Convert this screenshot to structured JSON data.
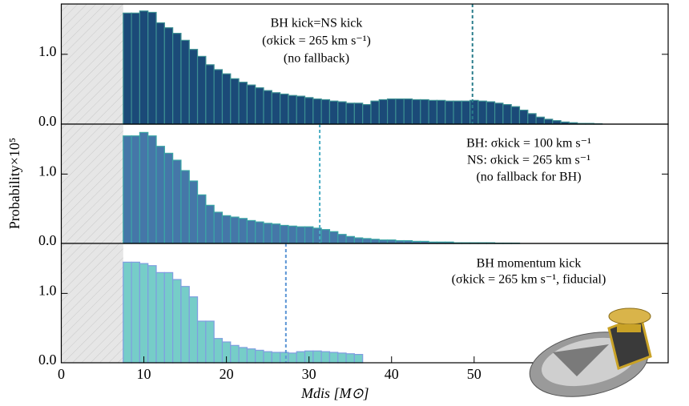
{
  "chart_data": [
    {
      "type": "histogram",
      "color": "#1b4a78",
      "edgecolor": "#3c8f92",
      "xlim": [
        0,
        73.5
      ],
      "ylim": [
        0,
        1.72
      ],
      "yticks": [
        {
          "value": 0,
          "label": "0.0"
        },
        {
          "value": 1,
          "label": "1.0"
        }
      ],
      "shaded_region": [
        0,
        7.5
      ],
      "vline": 49.8,
      "vline_color": "#2a7d8c",
      "annotation": [
        "BH kick=NS kick",
        "(σkick = 265 km s⁻¹)",
        "(no fallback)"
      ],
      "bins": [
        7.5,
        8.5,
        9.5,
        10.5,
        11.5,
        12.5,
        13.5,
        14.5,
        15.5,
        16.5,
        17.5,
        18.5,
        19.5,
        20.5,
        21.5,
        22.5,
        23.5,
        24.5,
        25.5,
        26.5,
        27.5,
        28.5,
        29.5,
        30.5,
        31.5,
        32.5,
        33.5,
        34.5,
        35.5,
        36.5,
        37.5,
        38.5,
        39.5,
        40.5,
        41.5,
        42.5,
        43.5,
        44.5,
        45.5,
        46.5,
        47.5,
        48.5,
        49.5,
        50.5,
        51.5,
        52.5,
        53.5,
        54.5,
        55.5,
        56.5,
        57.5,
        58.5,
        59.5,
        60.5,
        61.5,
        62.5,
        63.5,
        64.5,
        65.5,
        66.5
      ],
      "values": [
        1.59,
        1.59,
        1.62,
        1.6,
        1.45,
        1.38,
        1.3,
        1.2,
        1.07,
        0.97,
        0.85,
        0.78,
        0.72,
        0.65,
        0.6,
        0.56,
        0.52,
        0.48,
        0.45,
        0.43,
        0.41,
        0.4,
        0.38,
        0.36,
        0.35,
        0.33,
        0.32,
        0.3,
        0.3,
        0.28,
        0.33,
        0.35,
        0.36,
        0.36,
        0.36,
        0.35,
        0.35,
        0.34,
        0.34,
        0.33,
        0.33,
        0.33,
        0.34,
        0.33,
        0.32,
        0.3,
        0.28,
        0.25,
        0.2,
        0.15,
        0.1,
        0.07,
        0.05,
        0.03,
        0.02,
        0.01,
        0.01,
        0.005,
        0
      ]
    },
    {
      "type": "histogram",
      "color": "#4577a8",
      "edgecolor": "#3aa5a5",
      "xlim": [
        0,
        73.5
      ],
      "ylim": [
        0,
        1.72
      ],
      "yticks": [
        {
          "value": 0,
          "label": "0.0"
        },
        {
          "value": 1,
          "label": "1.0"
        }
      ],
      "ylabel": "Probability×10⁵",
      "shaded_region": [
        0,
        7.5
      ],
      "vline": 31.3,
      "vline_color": "#4aaec4",
      "annotation": [
        "BH: σkick = 100 km s⁻¹",
        "NS: σkick = 265 km s⁻¹",
        "(no fallback for BH)"
      ],
      "bins": [
        7.5,
        8.5,
        9.5,
        10.5,
        11.5,
        12.5,
        13.5,
        14.5,
        15.5,
        16.5,
        17.5,
        18.5,
        19.5,
        20.5,
        21.5,
        22.5,
        23.5,
        24.5,
        25.5,
        26.5,
        27.5,
        28.5,
        29.5,
        30.5,
        31.5,
        32.5,
        33.5,
        34.5,
        35.5,
        36.5,
        37.5,
        38.5,
        39.5,
        40.5,
        41.5,
        42.5,
        43.5,
        44.5,
        45.5,
        46.5,
        47.5,
        48.5,
        49.5,
        50.5,
        51.5,
        52.5,
        53.5,
        54.5,
        55.5,
        56.5,
        57.5,
        58.5,
        59.5,
        60.5,
        61.5,
        62.5,
        63.5,
        64.5,
        65.5,
        66.5
      ],
      "values": [
        1.55,
        1.55,
        1.6,
        1.55,
        1.4,
        1.3,
        1.2,
        1.05,
        0.9,
        0.7,
        0.55,
        0.45,
        0.4,
        0.38,
        0.36,
        0.33,
        0.31,
        0.29,
        0.28,
        0.26,
        0.25,
        0.24,
        0.24,
        0.22,
        0.2,
        0.17,
        0.13,
        0.1,
        0.08,
        0.07,
        0.06,
        0.05,
        0.05,
        0.04,
        0.04,
        0.03,
        0.03,
        0.02,
        0.02,
        0.02,
        0.01,
        0.01,
        0.01,
        0.01,
        0.01,
        0.005,
        0.005,
        0.005,
        0,
        0,
        0,
        0,
        0,
        0,
        0,
        0,
        0,
        0,
        0
      ]
    },
    {
      "type": "histogram",
      "color": "#76cdc8",
      "edgecolor": "#7f9ee0",
      "xlim": [
        0,
        73.5
      ],
      "ylim": [
        0,
        1.72
      ],
      "yticks": [
        {
          "value": 0,
          "label": "0.0"
        },
        {
          "value": 1,
          "label": "1.0"
        }
      ],
      "xticks": [
        0,
        10,
        20,
        30,
        40,
        50
      ],
      "xlabel": "Mdis [M⊙]",
      "shaded_region": [
        0,
        7.5
      ],
      "vline": 27.2,
      "vline_color": "#5b95d4",
      "annotation": [
        "BH momentum kick",
        "(σkick = 265 km s⁻¹, fiducial)"
      ],
      "bins": [
        7.5,
        8.5,
        9.5,
        10.5,
        11.5,
        12.5,
        13.5,
        14.5,
        15.5,
        16.5,
        17.5,
        18.5,
        19.5,
        20.5,
        21.5,
        22.5,
        23.5,
        24.5,
        25.5,
        26.5,
        27.5,
        28.5,
        29.5,
        30.5,
        31.5,
        32.5,
        33.5,
        34.5,
        35.5,
        36.5,
        37.5,
        38.5,
        39.5,
        40.5,
        41.5,
        42.5,
        43.5,
        44.5,
        45.5,
        46.5,
        47.5,
        48.5,
        49.5,
        50.5,
        51.5,
        52.5,
        53.5,
        54.5,
        55.5,
        56.5,
        57.5,
        58.5,
        59.5,
        60.5,
        61.5,
        62.5,
        63.5,
        64.5,
        65.5,
        66.5
      ],
      "values": [
        1.45,
        1.45,
        1.43,
        1.4,
        1.3,
        1.3,
        1.2,
        1.1,
        0.95,
        0.6,
        0.6,
        0.35,
        0.3,
        0.25,
        0.22,
        0.2,
        0.18,
        0.16,
        0.15,
        0.15,
        0.14,
        0.16,
        0.17,
        0.17,
        0.16,
        0.15,
        0.14,
        0.13,
        0.12,
        0,
        0,
        0,
        0,
        0,
        0,
        0,
        0,
        0,
        0,
        0,
        0,
        0,
        0,
        0,
        0,
        0,
        0,
        0,
        0,
        0,
        0,
        0,
        0,
        0,
        0,
        0,
        0,
        0,
        0
      ]
    }
  ]
}
